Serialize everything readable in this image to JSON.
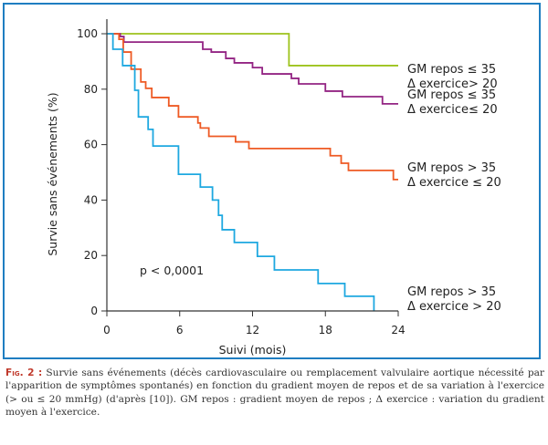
{
  "chart_data": {
    "type": "line",
    "subtype": "kaplan-meier-step",
    "xlabel": "Suivi (mois)",
    "ylabel": "Survie sans événements (%)",
    "xlim": [
      0,
      24
    ],
    "ylim": [
      0,
      100
    ],
    "xticks": [
      0,
      6,
      12,
      18,
      24
    ],
    "xtick_labels": [
      "0",
      "6",
      "12",
      "18",
      "24"
    ],
    "yticks": [
      0,
      20,
      40,
      60,
      80,
      100
    ],
    "ytick_labels": [
      "0",
      "20",
      "40",
      "60",
      "80",
      "100"
    ],
    "annotation": "p < 0,0001",
    "grid": false,
    "series": [
      {
        "name": "GM repos ≤ 35 / Δ exercice > 20",
        "label_line1": "GM repos ≤ 35",
        "label_line2": "Δ exercice> 20",
        "color": "#9dc31c",
        "x": [
          0,
          15.0,
          24
        ],
        "y": [
          100,
          88.5,
          88.5
        ]
      },
      {
        "name": "GM repos ≤ 35 / Δ exercice ≤ 20",
        "label_line1": "GM repos ≤ 35",
        "label_line2": "Δ exercice≤ 20",
        "color": "#932483",
        "x": [
          0,
          1.1,
          1.4,
          7.9,
          8.6,
          9.8,
          10.5,
          12.0,
          12.8,
          15.2,
          15.8,
          18.0,
          19.4,
          22.7,
          24
        ],
        "y": [
          100,
          99,
          97,
          94.4,
          93.4,
          91.1,
          89.5,
          87.8,
          85.5,
          83.9,
          81.9,
          79.3,
          77.3,
          74.7,
          74.7
        ]
      },
      {
        "name": "GM repos > 35 / Δ exercice ≤ 20",
        "label_line1": "GM repos > 35",
        "label_line2": "Δ exercice ≤ 20",
        "color": "#ee5a24",
        "x": [
          0,
          1.0,
          1.35,
          2.0,
          2.8,
          3.2,
          3.7,
          5.1,
          5.9,
          7.5,
          7.7,
          8.4,
          10.6,
          11.7,
          18.4,
          19.3,
          19.9,
          23.6,
          24
        ],
        "y": [
          100,
          98,
          93.4,
          87.2,
          82.6,
          80.3,
          77,
          74,
          70,
          67.8,
          66,
          63,
          61,
          58.6,
          56,
          53.3,
          50.7,
          47.4,
          47.4
        ]
      },
      {
        "name": "GM repos > 35 / Δ exercice > 20",
        "label_line1": "GM repos > 35",
        "label_line2": "Δ exercice > 20",
        "color": "#1ea8e0",
        "x": [
          0,
          0.5,
          1.3,
          2.3,
          2.6,
          3.4,
          3.8,
          5.9,
          7.7,
          8.7,
          9.2,
          9.5,
          10.5,
          12.4,
          13.8,
          17.4,
          19.6,
          22.0
        ],
        "y": [
          100,
          94.4,
          88.5,
          79.6,
          70,
          65.5,
          59.5,
          49.3,
          44.7,
          40,
          34.5,
          29.3,
          24.7,
          19.7,
          14.8,
          9.9,
          5.3,
          0
        ]
      }
    ]
  },
  "caption": {
    "fig_label": "Fig. 2 :",
    "text": "Survie sans événements (décès cardiovasculaire ou remplacement valvulaire aortique nécessité par l'apparition de symptômes spontanés) en fonction du gradient moyen de repos et de sa variation à l'exercice (> ou ≤ 20 mmHg) (d'après [10]). GM repos : gradient moyen de repos ; Δ exercice : variation du gradient moyen à l'exercice."
  }
}
